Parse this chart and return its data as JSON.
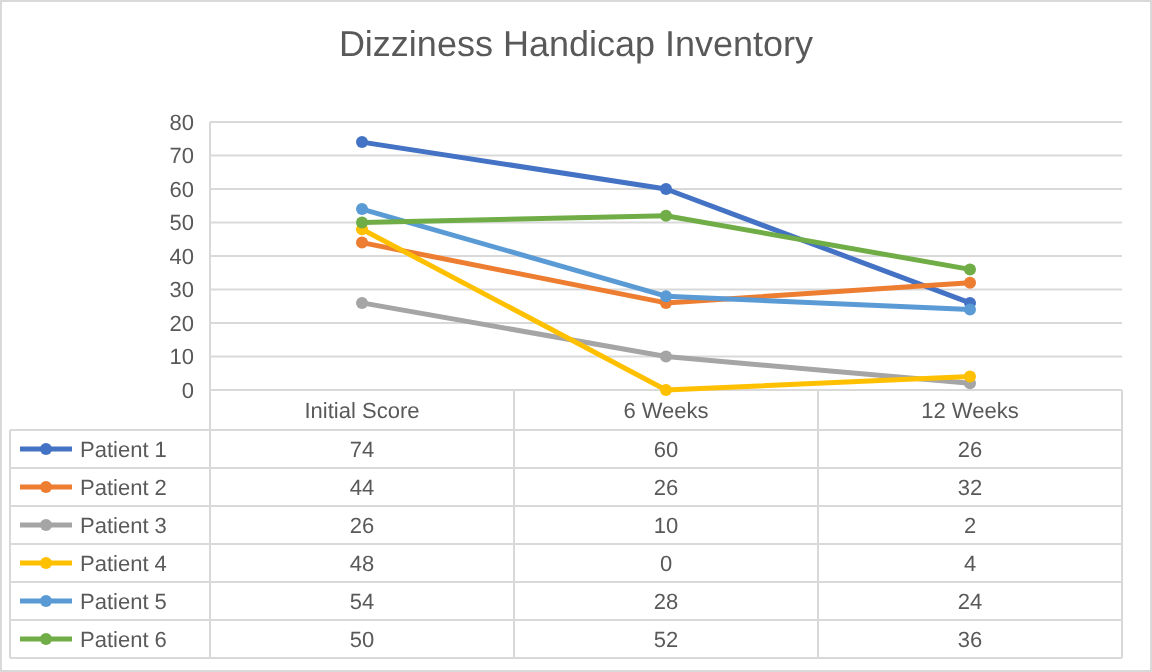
{
  "chart_data": {
    "type": "line",
    "title": "Dizziness Handicap Inventory",
    "categories": [
      "Initial Score",
      "6 Weeks",
      "12 Weeks"
    ],
    "series": [
      {
        "name": "Patient 1",
        "color": "#4472c4",
        "values": [
          74,
          60,
          26
        ]
      },
      {
        "name": "Patient 2",
        "color": "#ed7d31",
        "values": [
          44,
          26,
          32
        ]
      },
      {
        "name": "Patient 3",
        "color": "#a5a5a5",
        "values": [
          26,
          10,
          2
        ]
      },
      {
        "name": "Patient 4",
        "color": "#ffc000",
        "values": [
          48,
          0,
          4
        ]
      },
      {
        "name": "Patient 5",
        "color": "#5b9bd5",
        "values": [
          54,
          28,
          24
        ]
      },
      {
        "name": "Patient 6",
        "color": "#70ad47",
        "values": [
          50,
          52,
          36
        ]
      }
    ],
    "ylim": [
      0,
      80
    ],
    "yticks": [
      0,
      10,
      20,
      30,
      40,
      50,
      60,
      70,
      80
    ],
    "grid": "y",
    "marker": "circle",
    "line_style": "solid",
    "legend": "bottom",
    "data_labels": true
  }
}
